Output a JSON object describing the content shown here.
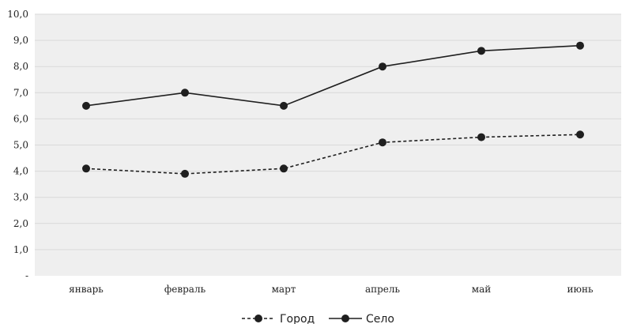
{
  "chart_data": {
    "type": "line",
    "categories": [
      "январь",
      "февраль",
      "март",
      "апрель",
      "май",
      "июнь"
    ],
    "ylim": [
      0,
      10
    ],
    "yticks": [
      "-",
      "1,0",
      "2,0",
      "3,0",
      "4,0",
      "5,0",
      "6,0",
      "7,0",
      "8,0",
      "9,0",
      "10,0"
    ],
    "grid": true,
    "legend_position": "bottom",
    "series": [
      {
        "name": "Город",
        "style": "dashed",
        "values": [
          4.1,
          3.9,
          4.1,
          5.1,
          5.3,
          5.4
        ]
      },
      {
        "name": "Село",
        "style": "solid",
        "values": [
          6.5,
          7.0,
          6.5,
          8.0,
          8.6,
          8.8
        ]
      }
    ],
    "colors": {
      "plot_bg": "#efefef",
      "grid": "#d9d9d9",
      "line": "#1f1f1f"
    }
  }
}
